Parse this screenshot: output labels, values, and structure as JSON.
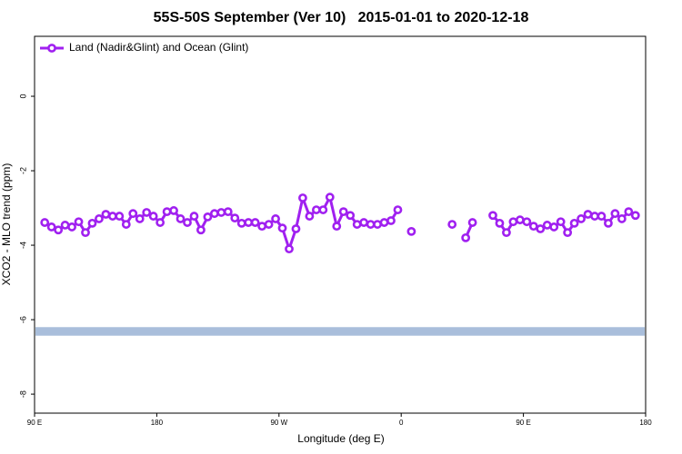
{
  "chart_data": {
    "type": "line",
    "title": "55S-50S September (Ver 10)   2015-01-01 to 2020-12-18",
    "x_label": "Longitude (deg E)",
    "y_label": "XCO2 - MLO trend (ppm)",
    "legend_position": "upper-left",
    "x": [
      97.5,
      102.5,
      107.5,
      112.5,
      117.5,
      122.5,
      127.5,
      132.5,
      137.5,
      142.5,
      147.5,
      152.5,
      157.5,
      162.5,
      167.5,
      172.5,
      177.5,
      182.5,
      187.5,
      192.5,
      197.5,
      202.5,
      207.5,
      212.5,
      217.5,
      222.5,
      227.5,
      232.5,
      237.5,
      242.5,
      247.5,
      252.5,
      257.5,
      262.5,
      267.5,
      272.5,
      277.5,
      282.5,
      287.5,
      292.5,
      297.5,
      302.5,
      307.5,
      312.5,
      317.5,
      322.5,
      327.5,
      332.5,
      337.5,
      342.5,
      347.5,
      352.5,
      357.5,
      362.5,
      367.5,
      372.5,
      377.5,
      382.5,
      387.5,
      392.5,
      397.5,
      402.5,
      407.5,
      412.5,
      417.5,
      422.5,
      427.5,
      432.5,
      437.5,
      442.5,
      447.5,
      452.5,
      457.5,
      462.5,
      467.5,
      472.5,
      477.5,
      482.5,
      487.5,
      492.5,
      497.5,
      502.5,
      507.5,
      512.5,
      517.5,
      522.5,
      527.5,
      532.5
    ],
    "series": [
      {
        "name": "Land (Nadir&Glint) and Ocean (Glint)",
        "color": "#a020f0",
        "values": [
          -3.39,
          -3.51,
          -3.59,
          -3.46,
          -3.51,
          -3.37,
          -3.66,
          -3.41,
          -3.29,
          -3.17,
          -3.22,
          -3.22,
          -3.44,
          -3.15,
          -3.29,
          -3.12,
          -3.22,
          -3.39,
          -3.1,
          -3.07,
          -3.29,
          -3.39,
          -3.22,
          -3.59,
          -3.24,
          -3.15,
          -3.12,
          -3.1,
          -3.27,
          -3.41,
          -3.39,
          -3.39,
          -3.49,
          -3.44,
          -3.29,
          -3.54,
          -4.1,
          -3.56,
          -2.73,
          -3.22,
          -3.05,
          -3.05,
          -2.71,
          -3.49,
          -3.1,
          -3.2,
          -3.44,
          -3.39,
          -3.44,
          -3.44,
          -3.39,
          -3.34,
          -3.05,
          null,
          -3.63,
          null,
          null,
          null,
          null,
          null,
          -3.44,
          null,
          -3.8,
          -3.39,
          null,
          null,
          -3.2,
          -3.41,
          -3.66,
          -3.37,
          -3.32,
          -3.37,
          -3.49,
          -3.56,
          -3.46,
          -3.51,
          -3.37,
          -3.66,
          -3.41,
          -3.29,
          -3.17,
          -3.22,
          -3.22,
          -3.41,
          -3.15,
          -3.29,
          -3.1,
          -3.2
        ]
      }
    ],
    "band": {
      "color": "#a9bedb",
      "range": [
        -6.2,
        -6.43
      ]
    },
    "xlim": [
      90,
      540
    ],
    "xticks": [
      {
        "value": 90,
        "label": "90 E"
      },
      180,
      {
        "value": 270,
        "label": "90 W"
      },
      {
        "value": 360,
        "label": "0"
      },
      {
        "value": 450,
        "label": "90 E"
      },
      {
        "value": 540,
        "label": "180"
      }
    ],
    "ylim": [
      -8.51,
      1.61
    ],
    "yticks": [
      0,
      -2,
      -4,
      -6,
      -8
    ]
  }
}
